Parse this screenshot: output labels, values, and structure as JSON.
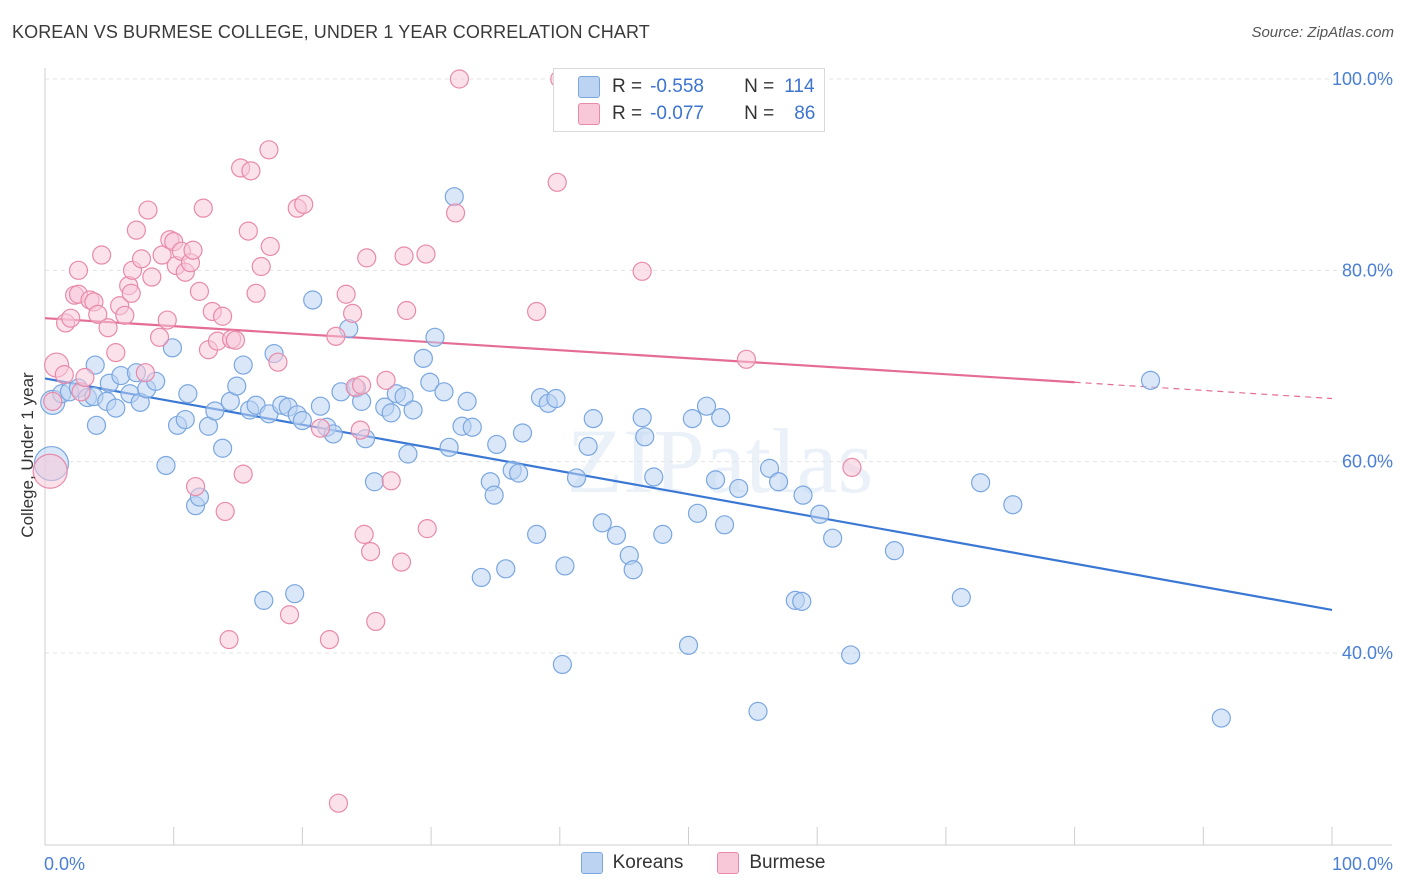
{
  "title": "KOREAN VS BURMESE COLLEGE, UNDER 1 YEAR CORRELATION CHART",
  "source": "Source: ZipAtlas.com",
  "watermark": "ZIPatlas",
  "chart_data": {
    "type": "scatter",
    "title": "KOREAN VS BURMESE COLLEGE, UNDER 1 YEAR CORRELATION CHART",
    "xlabel": "",
    "ylabel": "College, Under 1 year",
    "xlim": [
      0,
      100
    ],
    "ylim": [
      20,
      103
    ],
    "x_tick_labels": [
      "0.0%",
      "100.0%"
    ],
    "y_ticks": [
      40,
      60,
      80,
      100
    ],
    "y_tick_labels": [
      "40.0%",
      "60.0%",
      "80.0%",
      "100.0%"
    ],
    "grid": true,
    "legend_position": "top-center",
    "colors": {
      "koreans": "#3a78d4",
      "burmese": "#e46c95",
      "koreans_fill": "#bcd4f2",
      "burmese_fill": "#f8c8d8"
    },
    "series": [
      {
        "name": "Koreans",
        "R": "-0.558",
        "N": "114",
        "trend": {
          "x0": 0,
          "y0": 68.7,
          "x1": 100,
          "y1": 44.5
        },
        "points": [
          [
            0.6,
            66.2
          ],
          [
            0.5,
            59.8
          ],
          [
            1.3,
            67.1
          ],
          [
            1.9,
            67.3
          ],
          [
            2.6,
            67.7
          ],
          [
            3.3,
            66.7
          ],
          [
            3.9,
            70.1
          ],
          [
            3.8,
            66.8
          ],
          [
            4.0,
            63.8
          ],
          [
            4.8,
            66.3
          ],
          [
            5.0,
            68.2
          ],
          [
            5.5,
            65.6
          ],
          [
            5.9,
            69.0
          ],
          [
            6.6,
            67.1
          ],
          [
            7.1,
            69.3
          ],
          [
            7.4,
            66.2
          ],
          [
            7.9,
            67.6
          ],
          [
            8.6,
            68.4
          ],
          [
            9.4,
            59.6
          ],
          [
            9.9,
            71.9
          ],
          [
            10.3,
            63.8
          ],
          [
            10.9,
            64.4
          ],
          [
            11.1,
            67.1
          ],
          [
            11.7,
            55.4
          ],
          [
            12.0,
            56.3
          ],
          [
            12.7,
            63.7
          ],
          [
            13.2,
            65.3
          ],
          [
            13.8,
            61.4
          ],
          [
            14.4,
            66.3
          ],
          [
            14.9,
            67.9
          ],
          [
            15.4,
            70.1
          ],
          [
            15.9,
            65.4
          ],
          [
            16.4,
            65.9
          ],
          [
            17.0,
            45.5
          ],
          [
            17.4,
            65.0
          ],
          [
            17.8,
            71.3
          ],
          [
            18.4,
            65.9
          ],
          [
            18.9,
            65.7
          ],
          [
            19.4,
            46.2
          ],
          [
            19.6,
            64.9
          ],
          [
            20.0,
            64.3
          ],
          [
            20.8,
            76.9
          ],
          [
            21.4,
            65.8
          ],
          [
            21.9,
            63.6
          ],
          [
            22.4,
            62.9
          ],
          [
            23.0,
            67.3
          ],
          [
            23.6,
            73.9
          ],
          [
            24.2,
            67.7
          ],
          [
            24.6,
            66.3
          ],
          [
            24.9,
            62.4
          ],
          [
            25.6,
            57.9
          ],
          [
            26.4,
            65.7
          ],
          [
            26.9,
            65.1
          ],
          [
            27.3,
            67.1
          ],
          [
            27.9,
            66.8
          ],
          [
            28.2,
            60.8
          ],
          [
            28.6,
            65.4
          ],
          [
            29.4,
            70.8
          ],
          [
            29.9,
            68.3
          ],
          [
            30.3,
            73.0
          ],
          [
            31.0,
            67.3
          ],
          [
            31.4,
            61.5
          ],
          [
            32.4,
            63.7
          ],
          [
            31.8,
            87.7
          ],
          [
            32.8,
            66.3
          ],
          [
            33.2,
            63.6
          ],
          [
            33.9,
            47.9
          ],
          [
            34.6,
            57.9
          ],
          [
            34.9,
            56.5
          ],
          [
            35.1,
            61.8
          ],
          [
            35.8,
            48.8
          ],
          [
            36.3,
            59.1
          ],
          [
            36.8,
            58.8
          ],
          [
            37.1,
            63.0
          ],
          [
            38.5,
            66.7
          ],
          [
            38.2,
            52.4
          ],
          [
            39.1,
            66.1
          ],
          [
            39.7,
            66.6
          ],
          [
            40.2,
            38.8
          ],
          [
            40.4,
            49.1
          ],
          [
            41.3,
            58.3
          ],
          [
            42.2,
            61.6
          ],
          [
            42.6,
            64.5
          ],
          [
            43.3,
            53.6
          ],
          [
            44.4,
            52.3
          ],
          [
            45.4,
            50.2
          ],
          [
            45.7,
            48.7
          ],
          [
            46.4,
            64.6
          ],
          [
            46.6,
            62.6
          ],
          [
            47.3,
            58.4
          ],
          [
            48.0,
            52.4
          ],
          [
            50.0,
            40.8
          ],
          [
            50.3,
            64.5
          ],
          [
            50.7,
            54.6
          ],
          [
            51.4,
            65.8
          ],
          [
            52.1,
            58.1
          ],
          [
            52.5,
            64.6
          ],
          [
            52.8,
            53.4
          ],
          [
            53.9,
            57.2
          ],
          [
            55.4,
            33.9
          ],
          [
            56.3,
            59.3
          ],
          [
            57.0,
            57.9
          ],
          [
            58.3,
            45.5
          ],
          [
            58.8,
            45.4
          ],
          [
            58.9,
            56.5
          ],
          [
            60.2,
            54.5
          ],
          [
            61.2,
            52.0
          ],
          [
            62.6,
            39.8
          ],
          [
            66.0,
            50.7
          ],
          [
            71.2,
            45.8
          ],
          [
            72.7,
            57.8
          ],
          [
            75.2,
            55.5
          ],
          [
            85.9,
            68.5
          ],
          [
            91.4,
            33.2
          ]
        ]
      },
      {
        "name": "Burmese",
        "R": "-0.077",
        "N": "86",
        "trend": {
          "x0": 0,
          "y0": 75.0,
          "x1": 80,
          "y1": 68.3,
          "dash_to_x": 100,
          "dash_to_y": 66.6
        },
        "points": [
          [
            0.4,
            59.0
          ],
          [
            0.6,
            66.3
          ],
          [
            0.9,
            70.1
          ],
          [
            1.5,
            69.1
          ],
          [
            1.6,
            74.5
          ],
          [
            2.0,
            75.0
          ],
          [
            2.3,
            77.4
          ],
          [
            2.6,
            77.5
          ],
          [
            2.8,
            67.3
          ],
          [
            3.1,
            68.8
          ],
          [
            2.6,
            80.0
          ],
          [
            3.5,
            76.9
          ],
          [
            3.8,
            76.7
          ],
          [
            4.1,
            75.4
          ],
          [
            4.4,
            81.6
          ],
          [
            4.9,
            74.0
          ],
          [
            5.5,
            71.4
          ],
          [
            5.8,
            76.3
          ],
          [
            6.2,
            75.3
          ],
          [
            6.5,
            78.4
          ],
          [
            6.7,
            77.6
          ],
          [
            6.8,
            80.0
          ],
          [
            7.1,
            84.2
          ],
          [
            7.8,
            69.3
          ],
          [
            7.5,
            81.2
          ],
          [
            8.0,
            86.3
          ],
          [
            8.3,
            79.3
          ],
          [
            8.9,
            73.0
          ],
          [
            9.1,
            81.6
          ],
          [
            9.5,
            74.8
          ],
          [
            9.7,
            83.2
          ],
          [
            10.0,
            83.0
          ],
          [
            10.2,
            80.5
          ],
          [
            10.6,
            82.0
          ],
          [
            10.9,
            79.8
          ],
          [
            11.3,
            80.8
          ],
          [
            11.5,
            82.1
          ],
          [
            11.7,
            57.4
          ],
          [
            12.0,
            77.8
          ],
          [
            12.3,
            86.5
          ],
          [
            12.7,
            71.7
          ],
          [
            13.0,
            75.7
          ],
          [
            13.4,
            72.6
          ],
          [
            13.8,
            75.2
          ],
          [
            14.0,
            54.8
          ],
          [
            14.3,
            41.4
          ],
          [
            14.5,
            72.8
          ],
          [
            14.8,
            72.7
          ],
          [
            15.2,
            90.7
          ],
          [
            15.4,
            58.7
          ],
          [
            15.8,
            84.1
          ],
          [
            16.0,
            90.4
          ],
          [
            16.4,
            77.6
          ],
          [
            16.8,
            80.4
          ],
          [
            17.5,
            82.5
          ],
          [
            17.4,
            92.6
          ],
          [
            18.1,
            70.4
          ],
          [
            19.0,
            44.0
          ],
          [
            19.6,
            86.5
          ],
          [
            20.1,
            86.9
          ],
          [
            21.4,
            63.5
          ],
          [
            22.1,
            41.4
          ],
          [
            22.6,
            73.1
          ],
          [
            22.8,
            24.3
          ],
          [
            23.4,
            77.5
          ],
          [
            23.9,
            75.5
          ],
          [
            24.1,
            67.8
          ],
          [
            24.6,
            68.0
          ],
          [
            24.5,
            63.3
          ],
          [
            24.8,
            52.4
          ],
          [
            25.0,
            81.3
          ],
          [
            25.3,
            50.6
          ],
          [
            25.7,
            43.3
          ],
          [
            26.5,
            68.5
          ],
          [
            26.9,
            58.0
          ],
          [
            27.7,
            49.5
          ],
          [
            27.9,
            81.5
          ],
          [
            28.1,
            75.8
          ],
          [
            29.6,
            81.7
          ],
          [
            29.7,
            53.0
          ],
          [
            31.9,
            86.0
          ],
          [
            32.2,
            100.0
          ],
          [
            39.8,
            89.2
          ],
          [
            38.2,
            75.7
          ],
          [
            46.4,
            79.9
          ],
          [
            54.5,
            70.7
          ],
          [
            62.7,
            59.4
          ],
          [
            40.0,
            100.0
          ]
        ]
      }
    ]
  },
  "legend_top": {
    "rows": [
      {
        "r_label": "R =",
        "r_value": "-0.558",
        "n_label": "N =",
        "n_value": "114"
      },
      {
        "r_label": "R =",
        "r_value": "-0.077",
        "n_label": "N =",
        "n_value": "86"
      }
    ]
  },
  "legend_bottom": {
    "items": [
      "Koreans",
      "Burmese"
    ]
  }
}
